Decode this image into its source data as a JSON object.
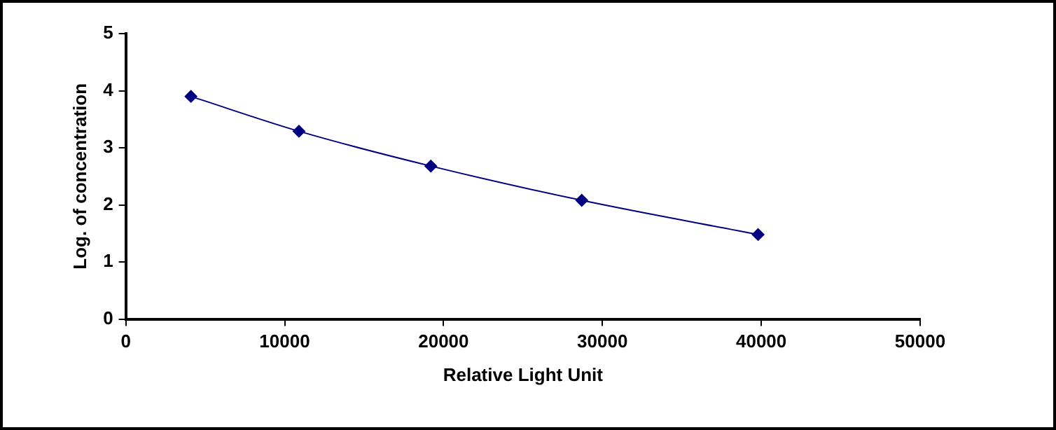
{
  "chart_data": {
    "type": "line",
    "xlabel": "Relative Light Unit",
    "ylabel": "Log. of concentration",
    "x": [
      4100,
      10900,
      19200,
      28700,
      39800
    ],
    "series": [
      {
        "color": "#000080",
        "values": [
          3.9,
          3.29,
          2.68,
          2.08,
          1.48
        ]
      }
    ],
    "xlim": [
      0,
      50000
    ],
    "xticks": [
      0,
      10000,
      20000,
      30000,
      40000,
      50000
    ],
    "ylim": [
      0,
      5
    ],
    "yticks": [
      0,
      1,
      2,
      3,
      4,
      5
    ],
    "grid": false,
    "legend": false,
    "marker": "diamond",
    "line_style": "solid"
  }
}
